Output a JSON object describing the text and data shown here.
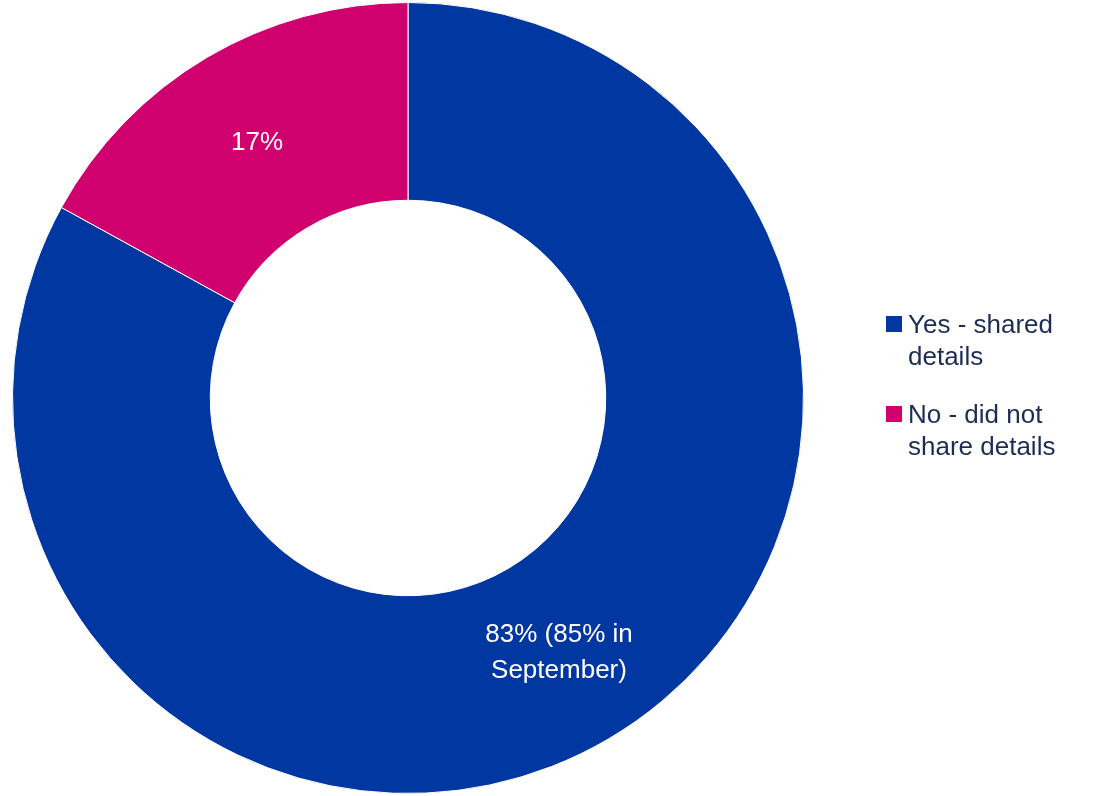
{
  "chart_data": {
    "type": "donut",
    "categories": [
      "Yes - shared details",
      "No - did not share details"
    ],
    "values": [
      83,
      17
    ],
    "colors": [
      "#0037a1",
      "#d1006f"
    ],
    "value_labels": [
      "83% (85% in September)",
      "17%"
    ],
    "legend": "right"
  }
}
